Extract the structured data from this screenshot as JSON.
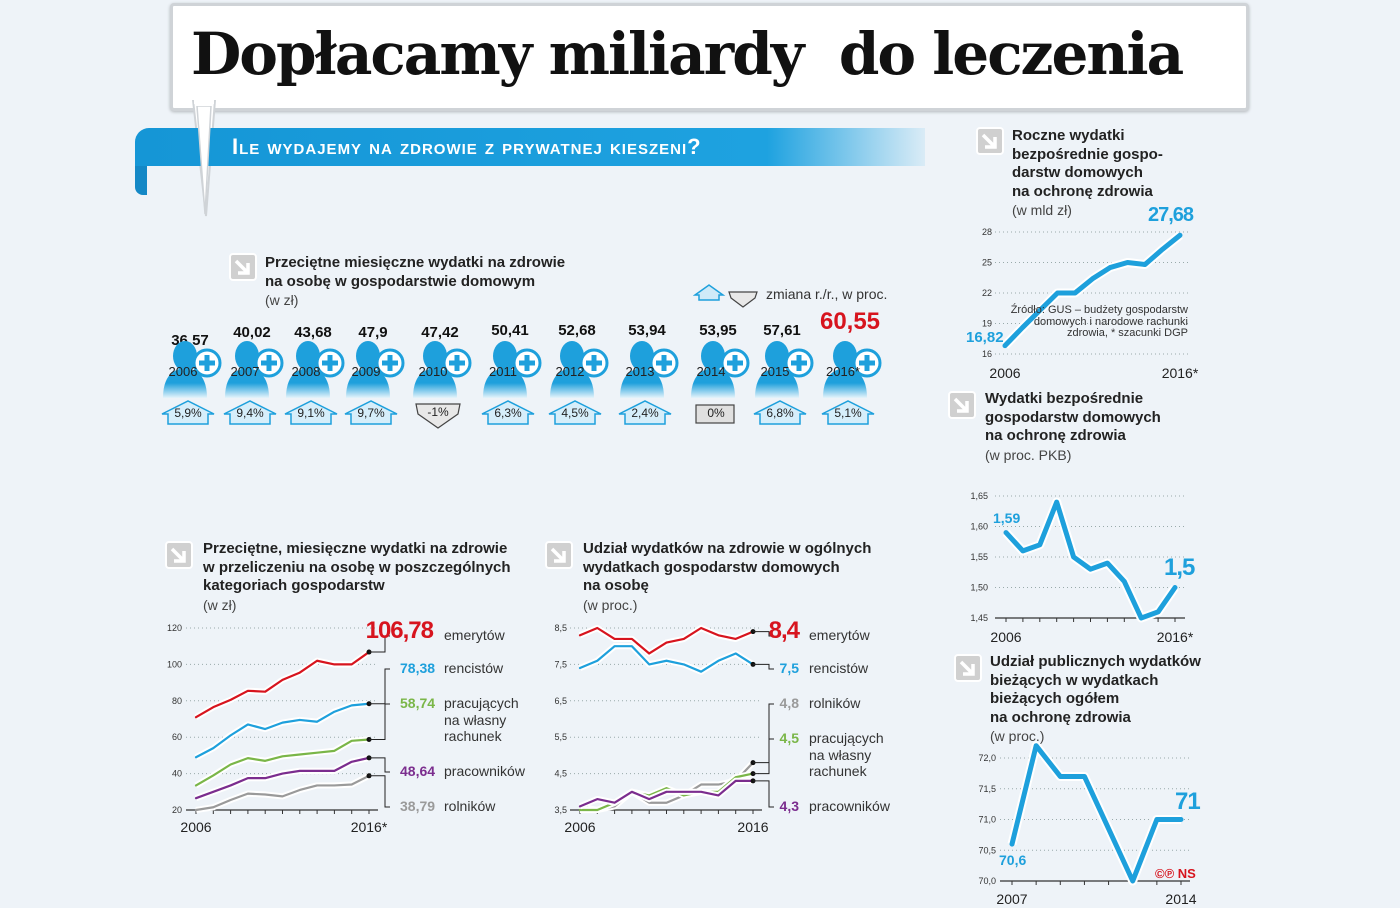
{
  "title": "Dopłacamy miliardy  do leczenia",
  "banner": "Ile wydajemy na zdrowie z prywatnej kieszeni?",
  "legend_change": "zmiana r./r., w proc.",
  "source": "Źródło: GUS – budżety gospodarstw domowych i narodowe rachunki zdrowia, * szacunki DGP",
  "credit": "©℗ NS",
  "colors": {
    "blue": "#1ea0dc",
    "red": "#d7141e",
    "green": "#7ab648",
    "purple": "#7b2d8e",
    "gray": "#9a9a9a",
    "background": "#eef3f8"
  },
  "chart_data": [
    {
      "id": "monthly",
      "type": "table",
      "title": "Przeciętne miesięczne wydatki na zdrowie na osobę w gospodarstwie domowym",
      "title_lines": [
        "Przeciętne miesięczne wydatki na zdrowie",
        "na osobę w gospodarstwie domowym"
      ],
      "unit": "(w zł)",
      "icon": "doctor-with-plus-icon",
      "items": [
        {
          "year": "2006",
          "value": "36,57",
          "change": "5,9%",
          "direction": "up"
        },
        {
          "year": "2007",
          "value": "40,02",
          "change": "9,4%",
          "direction": "up"
        },
        {
          "year": "2008",
          "value": "43,68",
          "change": "9,1%",
          "direction": "up"
        },
        {
          "year": "2009",
          "value": "47,9",
          "change": "9,7%",
          "direction": "up"
        },
        {
          "year": "2010",
          "value": "47,42",
          "change": "-1%",
          "direction": "down"
        },
        {
          "year": "2011",
          "value": "50,41",
          "change": "6,3%",
          "direction": "up"
        },
        {
          "year": "2012",
          "value": "52,68",
          "change": "4,5%",
          "direction": "up"
        },
        {
          "year": "2013",
          "value": "53,94",
          "change": "2,4%",
          "direction": "up"
        },
        {
          "year": "2014",
          "value": "53,95",
          "change": "0%",
          "direction": "flat"
        },
        {
          "year": "2015",
          "value": "57,61",
          "change": "6,8%",
          "direction": "up"
        },
        {
          "year": "2016*",
          "value": "60,55",
          "change": "5,1%",
          "direction": "up",
          "highlight": true
        }
      ]
    },
    {
      "id": "annual",
      "type": "line",
      "title_lines": [
        "Roczne wydatki",
        "bezpośrednie gospo-",
        "darstw domowych",
        "na ochronę zdrowia"
      ],
      "unit": "(w mld zł)",
      "x": [
        2006,
        2007,
        2008,
        2009,
        2010,
        2011,
        2012,
        2013,
        2014,
        2015,
        2016
      ],
      "x_tick_labels": [
        "2006",
        "2016*"
      ],
      "yticks": [
        "16",
        "19",
        "22",
        "25",
        "28"
      ],
      "ylim": [
        16,
        28
      ],
      "grid": true,
      "series": [
        {
          "values": [
            16.82,
            18.6,
            20.3,
            22.0,
            22.0,
            23.4,
            24.5,
            25.0,
            24.8,
            26.3,
            27.68
          ],
          "color": "#1ea0dc"
        }
      ],
      "start_label": "16,82",
      "end_label": "27,68"
    },
    {
      "id": "gdp",
      "type": "line",
      "title_lines": [
        "Wydatki bezpośrednie",
        "gospodarstw domowych",
        "na ochronę zdrowia"
      ],
      "unit": "(w proc. PKB)",
      "x": [
        2006,
        2007,
        2008,
        2009,
        2010,
        2011,
        2012,
        2013,
        2014,
        2015,
        2016
      ],
      "x_tick_labels": [
        "2006",
        "2016*"
      ],
      "yticks": [
        "1,45",
        "1,50",
        "1,55",
        "1,60",
        "1,65"
      ],
      "ylim": [
        1.45,
        1.65
      ],
      "grid": true,
      "series": [
        {
          "values": [
            1.59,
            1.56,
            1.57,
            1.64,
            1.55,
            1.53,
            1.54,
            1.51,
            1.45,
            1.46,
            1.5
          ],
          "color": "#1ea0dc"
        }
      ],
      "start_label": "1,59",
      "end_label": "1,5"
    },
    {
      "id": "public",
      "type": "line",
      "title_lines": [
        "Udział publicznych wydatków",
        "bieżących w wydatkach",
        "bieżących ogółem",
        "na ochronę zdrowia"
      ],
      "unit": "(w proc.)",
      "x": [
        2007,
        2008,
        2009,
        2010,
        2011,
        2012,
        2013,
        2014
      ],
      "x_tick_labels": [
        "2007",
        "2014"
      ],
      "yticks": [
        "70,0",
        "70,5",
        "71,0",
        "71,5",
        "72,0"
      ],
      "ylim": [
        70.0,
        72.0
      ],
      "grid": true,
      "series": [
        {
          "values": [
            70.6,
            72.2,
            71.7,
            71.7,
            70.85,
            70.0,
            71.0,
            71.0
          ],
          "color": "#1ea0dc"
        }
      ],
      "start_label": "70,6",
      "end_label": "71"
    },
    {
      "id": "categories",
      "type": "line",
      "title_lines": [
        "Przeciętne, miesięczne wydatki na zdrowie",
        "w przeliczeniu na osobę w poszczególnych",
        "kategoriach gospodarstw"
      ],
      "unit": "(w zł)",
      "x": [
        2006,
        2007,
        2008,
        2009,
        2010,
        2011,
        2012,
        2013,
        2014,
        2015,
        2016
      ],
      "x_tick_labels": [
        "2006",
        "2016*"
      ],
      "yticks": [
        "20",
        "40",
        "60",
        "80",
        "100",
        "120"
      ],
      "ylim": [
        20,
        120
      ],
      "grid": true,
      "series": [
        {
          "name": "emerytów",
          "label": "106,78",
          "color": "#d7141e",
          "values": [
            71,
            76.5,
            80.5,
            85.5,
            85,
            91.5,
            95.5,
            102,
            100,
            100,
            106.78
          ]
        },
        {
          "name": "rencistów",
          "label": "78,38",
          "color": "#1ea0dc",
          "values": [
            49,
            54,
            61,
            67,
            64.5,
            68,
            69.5,
            68.5,
            74,
            77.5,
            78.38
          ]
        },
        {
          "name": "pracujących na własny rachunek",
          "name_lines": [
            "pracujących",
            "na własny",
            "rachunek"
          ],
          "label": "58,74",
          "color": "#7ab648",
          "values": [
            33.5,
            39,
            45,
            48.5,
            47,
            49.5,
            50.5,
            51.5,
            52.5,
            58,
            58.74
          ]
        },
        {
          "name": "pracowników",
          "label": "48,64",
          "color": "#7b2d8e",
          "values": [
            26.5,
            30,
            33.5,
            37.5,
            37.5,
            40,
            41.5,
            41.5,
            41.5,
            46.5,
            48.64
          ]
        },
        {
          "name": "rolników",
          "label": "38,79",
          "color": "#9a9a9a",
          "values": [
            20,
            21.5,
            25.5,
            29,
            28.5,
            27.5,
            31,
            33.5,
            33.5,
            34,
            38.79
          ]
        }
      ]
    },
    {
      "id": "share",
      "type": "line",
      "title_lines": [
        "Udział wydatków na zdrowie w ogólnych",
        "wydatkach gospodarstw domowych",
        "na osobę"
      ],
      "unit": "(w proc.)",
      "x": [
        2006,
        2007,
        2008,
        2009,
        2010,
        2011,
        2012,
        2013,
        2014,
        2015,
        2016
      ],
      "x_tick_labels": [
        "2006",
        "2016"
      ],
      "yticks": [
        "3,5",
        "4,5",
        "5,5",
        "6,5",
        "7,5",
        "8,5"
      ],
      "ylim": [
        3.5,
        8.5
      ],
      "grid": true,
      "series": [
        {
          "name": "emerytów",
          "label": "8,4",
          "color": "#d7141e",
          "values": [
            8.3,
            8.5,
            8.2,
            8.2,
            7.8,
            8.1,
            8.2,
            8.5,
            8.3,
            8.2,
            8.4
          ]
        },
        {
          "name": "rencistów",
          "label": "7,5",
          "color": "#1ea0dc",
          "values": [
            7.4,
            7.6,
            8.0,
            8.0,
            7.5,
            7.6,
            7.5,
            7.3,
            7.6,
            7.8,
            7.5
          ]
        },
        {
          "name": "rolników",
          "label": "4,8",
          "color": "#9a9a9a",
          "values": [
            3.6,
            3.5,
            3.6,
            4.0,
            3.7,
            3.7,
            3.9,
            4.2,
            4.2,
            4.3,
            4.8
          ]
        },
        {
          "name": "pracujących na własny rachunek",
          "name_lines": [
            "pracujących",
            "na własny",
            "rachunek"
          ],
          "label": "4,5",
          "color": "#7ab648",
          "values": [
            3.5,
            3.5,
            3.7,
            4.0,
            3.9,
            4.1,
            3.9,
            4.0,
            4.0,
            4.4,
            4.5
          ]
        },
        {
          "name": "pracowników",
          "label": "4,3",
          "color": "#7b2d8e",
          "values": [
            3.6,
            3.8,
            3.7,
            4.0,
            3.8,
            4.0,
            4.0,
            4.0,
            3.9,
            4.3,
            4.3
          ]
        }
      ]
    }
  ]
}
